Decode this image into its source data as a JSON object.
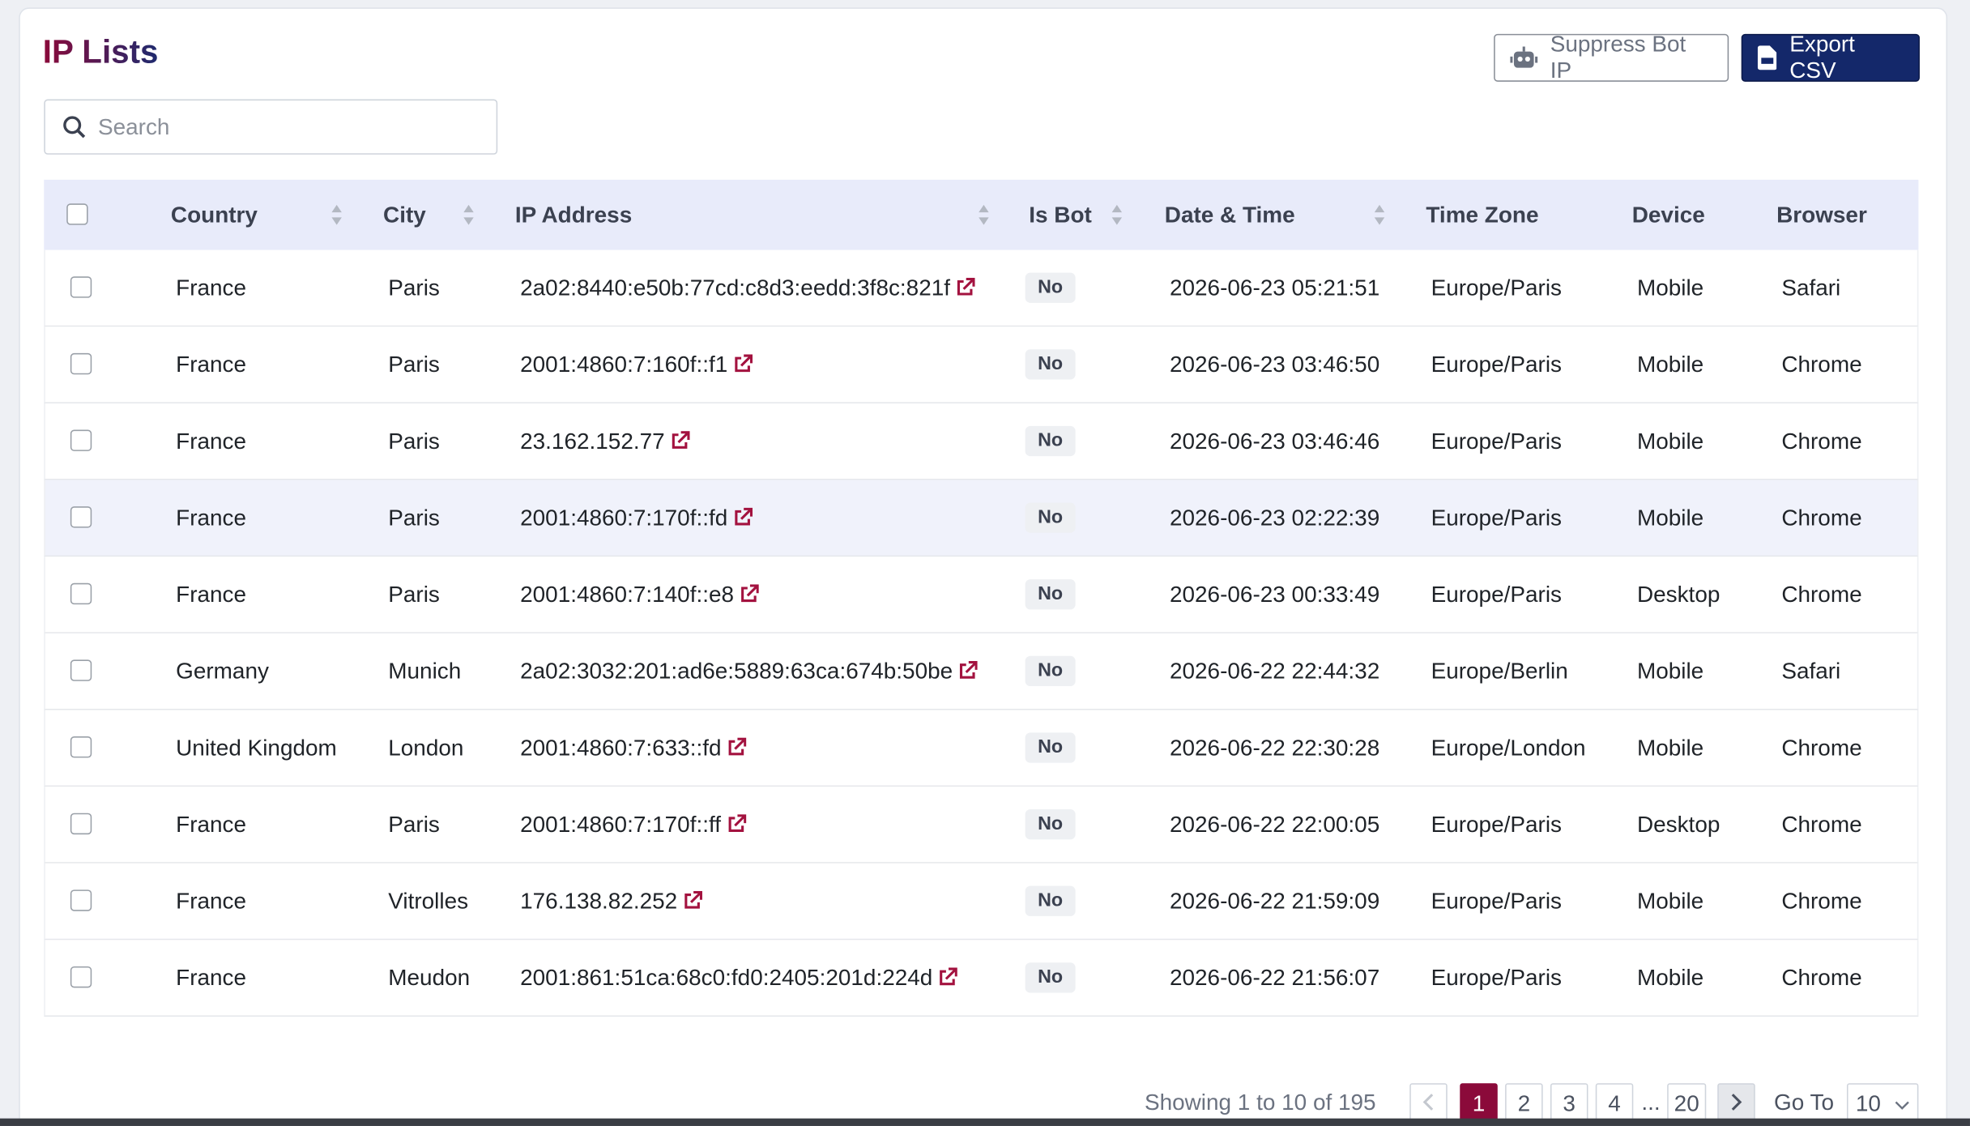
{
  "header": {
    "title": "IP Lists",
    "buttons": [
      "Suppress Bot IP",
      "Export CSV"
    ]
  },
  "search": {
    "placeholder": "Search"
  },
  "table": {
    "columns": [
      {
        "label": "Country",
        "sortable": true
      },
      {
        "label": "City",
        "sortable": true
      },
      {
        "label": "IP Address",
        "sortable": true
      },
      {
        "label": "Is Bot",
        "sortable": true
      },
      {
        "label": "Date & Time",
        "sortable": true
      },
      {
        "label": "Time Zone",
        "sortable": false
      },
      {
        "label": "Device",
        "sortable": false
      },
      {
        "label": "Browser",
        "sortable": false
      }
    ],
    "rows": [
      [
        "France",
        "Paris",
        "2a02:8440:e50b:77cd:c8d3:eedd:3f8c:821f",
        "No",
        "2026-06-23 05:21:51",
        "Europe/Paris",
        "Mobile",
        "Safari"
      ],
      [
        "France",
        "Paris",
        "2001:4860:7:160f::f1",
        "No",
        "2026-06-23 03:46:50",
        "Europe/Paris",
        "Mobile",
        "Chrome"
      ],
      [
        "France",
        "Paris",
        "23.162.152.77",
        "No",
        "2026-06-23 03:46:46",
        "Europe/Paris",
        "Mobile",
        "Chrome"
      ],
      [
        "France",
        "Paris",
        "2001:4860:7:170f::fd",
        "No",
        "2026-06-23 02:22:39",
        "Europe/Paris",
        "Mobile",
        "Chrome"
      ],
      [
        "France",
        "Paris",
        "2001:4860:7:140f::e8",
        "No",
        "2026-06-23 00:33:49",
        "Europe/Paris",
        "Desktop",
        "Chrome"
      ],
      [
        "Germany",
        "Munich",
        "2a02:3032:201:ad6e:5889:63ca:674b:50be",
        "No",
        "2026-06-22 22:44:32",
        "Europe/Berlin",
        "Mobile",
        "Safari"
      ],
      [
        "United Kingdom",
        "London",
        "2001:4860:7:633::fd",
        "No",
        "2026-06-22 22:30:28",
        "Europe/London",
        "Mobile",
        "Chrome"
      ],
      [
        "France",
        "Paris",
        "2001:4860:7:170f::ff",
        "No",
        "2026-06-22 22:00:05",
        "Europe/Paris",
        "Desktop",
        "Chrome"
      ],
      [
        "France",
        "Vitrolles",
        "176.138.82.252",
        "No",
        "2026-06-22 21:59:09",
        "Europe/Paris",
        "Mobile",
        "Chrome"
      ],
      [
        "France",
        "Meudon",
        "2001:861:51ca:68c0:fd0:2405:201d:224d",
        "No",
        "2026-06-22 21:56:07",
        "Europe/Paris",
        "Mobile",
        "Chrome"
      ]
    ]
  },
  "pagination": {
    "summary": "Showing 1 to 10 of 195",
    "pages": [
      "1",
      "2",
      "3",
      "4",
      "...",
      "20"
    ],
    "goto_label": "Go To",
    "page_size": "10"
  }
}
